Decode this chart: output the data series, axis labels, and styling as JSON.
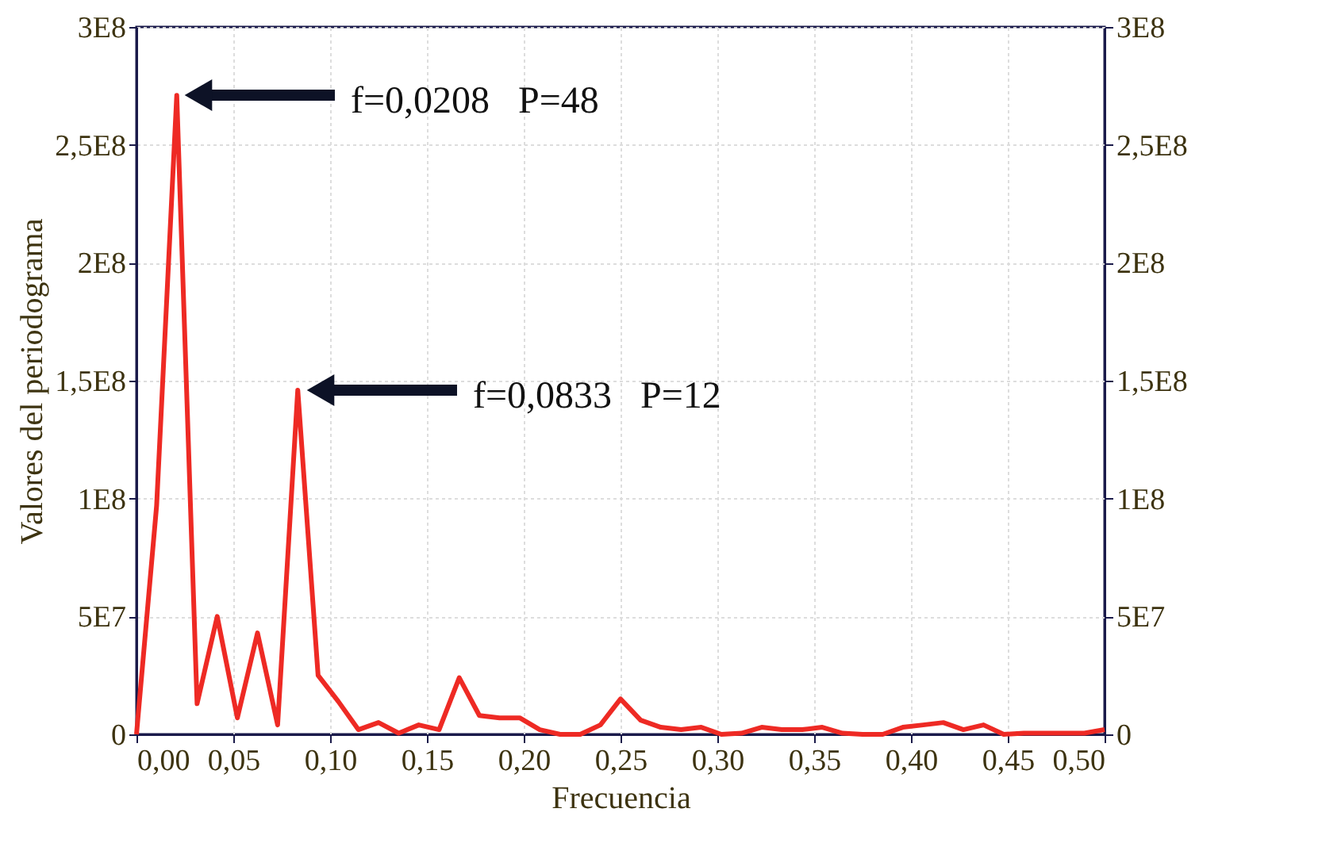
{
  "chart_data": {
    "type": "line",
    "xlabel": "Frecuencia",
    "ylabel": "Valores del periodograma",
    "x": [
      0,
      0.0104,
      0.0208,
      0.0313,
      0.0417,
      0.0521,
      0.0625,
      0.0729,
      0.0833,
      0.0938,
      0.1042,
      0.1146,
      0.125,
      0.1354,
      0.1458,
      0.1563,
      0.1667,
      0.1771,
      0.1875,
      0.1979,
      0.2083,
      0.2188,
      0.2292,
      0.2396,
      0.25,
      0.2604,
      0.2708,
      0.2813,
      0.2917,
      0.3021,
      0.3125,
      0.3229,
      0.3333,
      0.3438,
      0.3542,
      0.3646,
      0.375,
      0.3854,
      0.3958,
      0.4063,
      0.4167,
      0.4271,
      0.4375,
      0.4479,
      0.4583,
      0.4688,
      0.4792,
      0.4896,
      0.5
    ],
    "series": [
      {
        "color": "#ee2a24",
        "values": [
          0,
          97000000,
          271000000,
          13000000,
          50000000,
          7000000,
          43000000,
          4000000,
          146000000,
          25000000,
          14000000,
          2000000,
          5000000,
          500000,
          4000000,
          2000000,
          24000000,
          8000000,
          7000000,
          7000000,
          2000000,
          0,
          0,
          4000000,
          15000000,
          6000000,
          3000000,
          2000000,
          3000000,
          0,
          500000,
          3000000,
          2000000,
          2000000,
          3000000,
          500000,
          0,
          0,
          3000000,
          4000000,
          5000000,
          2000000,
          4000000,
          0,
          500000,
          500000,
          500000,
          500000,
          2000000
        ]
      }
    ],
    "xlim": [
      0,
      0.5
    ],
    "xticks": [
      {
        "value": 0,
        "label": "0,00"
      },
      {
        "value": 0.05,
        "label": "0,05"
      },
      {
        "value": 0.1,
        "label": "0,10"
      },
      {
        "value": 0.15,
        "label": "0,15"
      },
      {
        "value": 0.2,
        "label": "0,20"
      },
      {
        "value": 0.25,
        "label": "0,25"
      },
      {
        "value": 0.3,
        "label": "0,30"
      },
      {
        "value": 0.35,
        "label": "0,35"
      },
      {
        "value": 0.4,
        "label": "0,40"
      },
      {
        "value": 0.45,
        "label": "0,45"
      },
      {
        "value": 0.5,
        "label": "0,50"
      }
    ],
    "ylim": [
      0,
      300000000
    ],
    "yticks": [
      0,
      {
        "value": 50000000,
        "label": "5E7"
      },
      {
        "value": 100000000,
        "label": "1E8"
      },
      {
        "value": 150000000,
        "label": "1,5E8"
      },
      {
        "value": 200000000,
        "label": "2E8"
      },
      {
        "value": 250000000,
        "label": "2,5E8"
      },
      {
        "value": 300000000,
        "label": "3E8"
      }
    ],
    "y2lim": [
      0,
      300000000
    ],
    "y2ticks": [
      0,
      {
        "value": 50000000,
        "label": "5E7"
      },
      {
        "value": 100000000,
        "label": "1E8"
      },
      {
        "value": 150000000,
        "label": "1,5E8"
      },
      {
        "value": 200000000,
        "label": "2E8"
      },
      {
        "value": 250000000,
        "label": "2,5E8"
      },
      {
        "value": 300000000,
        "label": "3E8"
      }
    ],
    "annotations": [
      "f=0,0208   P=48",
      "f=0,0833   P=12"
    ],
    "grid": true,
    "marker": "none",
    "line_style": "solid"
  }
}
